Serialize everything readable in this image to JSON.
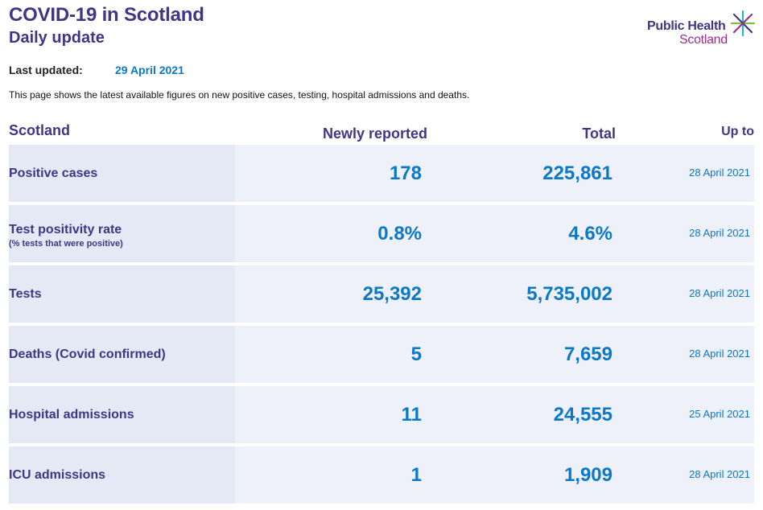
{
  "header": {
    "title": "COVID-19 in Scotland",
    "subtitle": "Daily update",
    "logo": {
      "line1": "Public Health",
      "line2": "Scotland",
      "icon": "star-burst-icon",
      "colors": [
        "#3f3685",
        "#9b2f8f",
        "#2bb3c9",
        "#7fbf3f"
      ]
    }
  },
  "last_updated": {
    "label": "Last updated:",
    "value": "29 April 2021"
  },
  "intro": "This page shows the latest available figures on new positive cases, testing, hospital admissions and deaths.",
  "table": {
    "columns": {
      "region": "Scotland",
      "new": "Newly reported",
      "total": "Total",
      "up_to": "Up to"
    },
    "rows": [
      {
        "label": "Positive cases",
        "sub": "",
        "new": "178",
        "total": "225,861",
        "date": "28 April 2021"
      },
      {
        "label": "Test positivity rate",
        "sub": "(% tests that were positive)",
        "new": "0.8%",
        "total": "4.6%",
        "date": "28 April 2021"
      },
      {
        "label": "Tests",
        "sub": "",
        "new": "25,392",
        "total": "5,735,002",
        "date": "28 April 2021"
      },
      {
        "label": "Deaths (Covid confirmed)",
        "sub": "",
        "new": "5",
        "total": "7,659",
        "date": "28 April 2021"
      },
      {
        "label": "Hospital admissions",
        "sub": "",
        "new": "11",
        "total": "24,555",
        "date": "25 April 2021"
      },
      {
        "label": "ICU admissions",
        "sub": "",
        "new": "1",
        "total": "1,909",
        "date": "28 April 2021"
      }
    ]
  },
  "colors": {
    "primary": "#3f3685",
    "accent": "#0b78c8",
    "row_bg": "#eef1f9",
    "label_bg": "#e5e9f5"
  }
}
